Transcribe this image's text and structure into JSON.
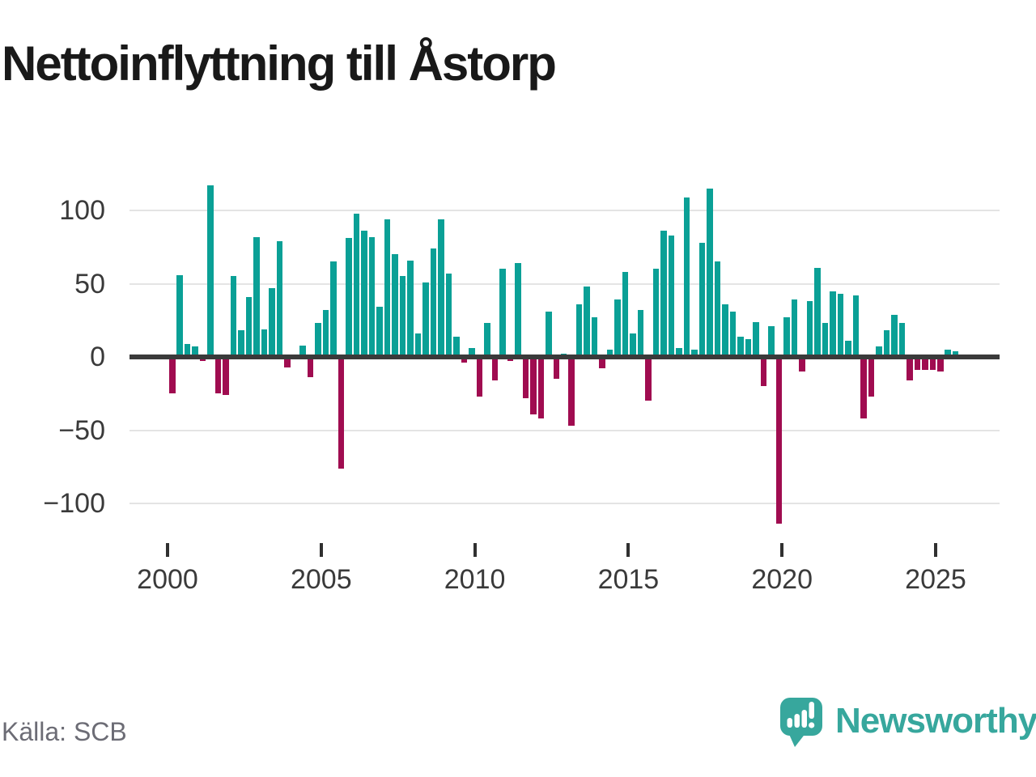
{
  "header": {
    "title": "Nettoinflyttning till Åstorp"
  },
  "footer": {
    "source_label": "Källa: SCB",
    "brand": "Newsworthy"
  },
  "icons": {
    "brand_icon": "newsworthy-speech-bubble-bar-chart-icon"
  },
  "chart_data": {
    "type": "bar",
    "title": "Nettoinflyttning till Åstorp",
    "xlabel": "",
    "ylabel": "",
    "ylim": [
      -125,
      125
    ],
    "grid": "horizontal",
    "legend": "none",
    "yticks": [
      100,
      50,
      0,
      -50,
      -100
    ],
    "ytick_labels": [
      "100",
      "50",
      "0",
      "−50",
      "−100"
    ],
    "xticks": [
      2000,
      2005,
      2010,
      2015,
      2020,
      2025
    ],
    "xtick_labels": [
      "2000",
      "2005",
      "2010",
      "2015",
      "2020",
      "2025"
    ],
    "colors": {
      "positive": "#0aa096",
      "negative": "#a00c50"
    },
    "categories": [
      "2000 Q1",
      "2000 Q2",
      "2000 Q3",
      "2000 Q4",
      "2001 Q1",
      "2001 Q2",
      "2001 Q3",
      "2001 Q4",
      "2002 Q1",
      "2002 Q2",
      "2002 Q3",
      "2002 Q4",
      "2003 Q1",
      "2003 Q2",
      "2003 Q3",
      "2003 Q4",
      "2004 Q1",
      "2004 Q2",
      "2004 Q3",
      "2004 Q4",
      "2005 Q1",
      "2005 Q2",
      "2005 Q3",
      "2005 Q4",
      "2006 Q1",
      "2006 Q2",
      "2006 Q3",
      "2006 Q4",
      "2007 Q1",
      "2007 Q2",
      "2007 Q3",
      "2007 Q4",
      "2008 Q1",
      "2008 Q2",
      "2008 Q3",
      "2008 Q4",
      "2009 Q1",
      "2009 Q2",
      "2009 Q3",
      "2009 Q4",
      "2010 Q1",
      "2010 Q2",
      "2010 Q3",
      "2010 Q4",
      "2011 Q1",
      "2011 Q2",
      "2011 Q3",
      "2011 Q4",
      "2012 Q1",
      "2012 Q2",
      "2012 Q3",
      "2012 Q4",
      "2013 Q1",
      "2013 Q2",
      "2013 Q3",
      "2013 Q4",
      "2014 Q1",
      "2014 Q2",
      "2014 Q3",
      "2014 Q4",
      "2015 Q1",
      "2015 Q2",
      "2015 Q3",
      "2015 Q4",
      "2016 Q1",
      "2016 Q2",
      "2016 Q3",
      "2016 Q4",
      "2017 Q1",
      "2017 Q2",
      "2017 Q3",
      "2017 Q4",
      "2018 Q1",
      "2018 Q2",
      "2018 Q3",
      "2018 Q4",
      "2019 Q1",
      "2019 Q2",
      "2019 Q3",
      "2019 Q4",
      "2020 Q1",
      "2020 Q2",
      "2020 Q3",
      "2020 Q4",
      "2021 Q1",
      "2021 Q2",
      "2021 Q3",
      "2021 Q4",
      "2022 Q1",
      "2022 Q2",
      "2022 Q3",
      "2022 Q4",
      "2023 Q1",
      "2023 Q2",
      "2023 Q3",
      "2023 Q4",
      "2024 Q1",
      "2024 Q2",
      "2024 Q3",
      "2024 Q4",
      "2025 Q1",
      "2025 Q2",
      "2025 Q3"
    ],
    "values": [
      -25,
      56,
      9,
      7,
      -3,
      117,
      -25,
      -26,
      55,
      18,
      41,
      82,
      19,
      47,
      79,
      -7,
      0,
      8,
      -14,
      23,
      32,
      65,
      -76,
      81,
      98,
      86,
      82,
      34,
      94,
      70,
      55,
      66,
      16,
      51,
      74,
      94,
      57,
      14,
      -4,
      6,
      -27,
      23,
      -16,
      60,
      -3,
      64,
      -28,
      -39,
      -42,
      31,
      -15,
      2,
      -47,
      36,
      48,
      27,
      -8,
      5,
      39,
      58,
      16,
      32,
      -30,
      60,
      86,
      83,
      6,
      109,
      5,
      78,
      115,
      65,
      36,
      31,
      14,
      12,
      24,
      -20,
      21,
      -114,
      27,
      39,
      -10,
      38,
      61,
      23,
      45,
      43,
      11,
      42,
      -42,
      -27,
      7,
      18,
      29,
      23,
      -16,
      -9,
      -9,
      -9,
      -10,
      5,
      4
    ]
  }
}
